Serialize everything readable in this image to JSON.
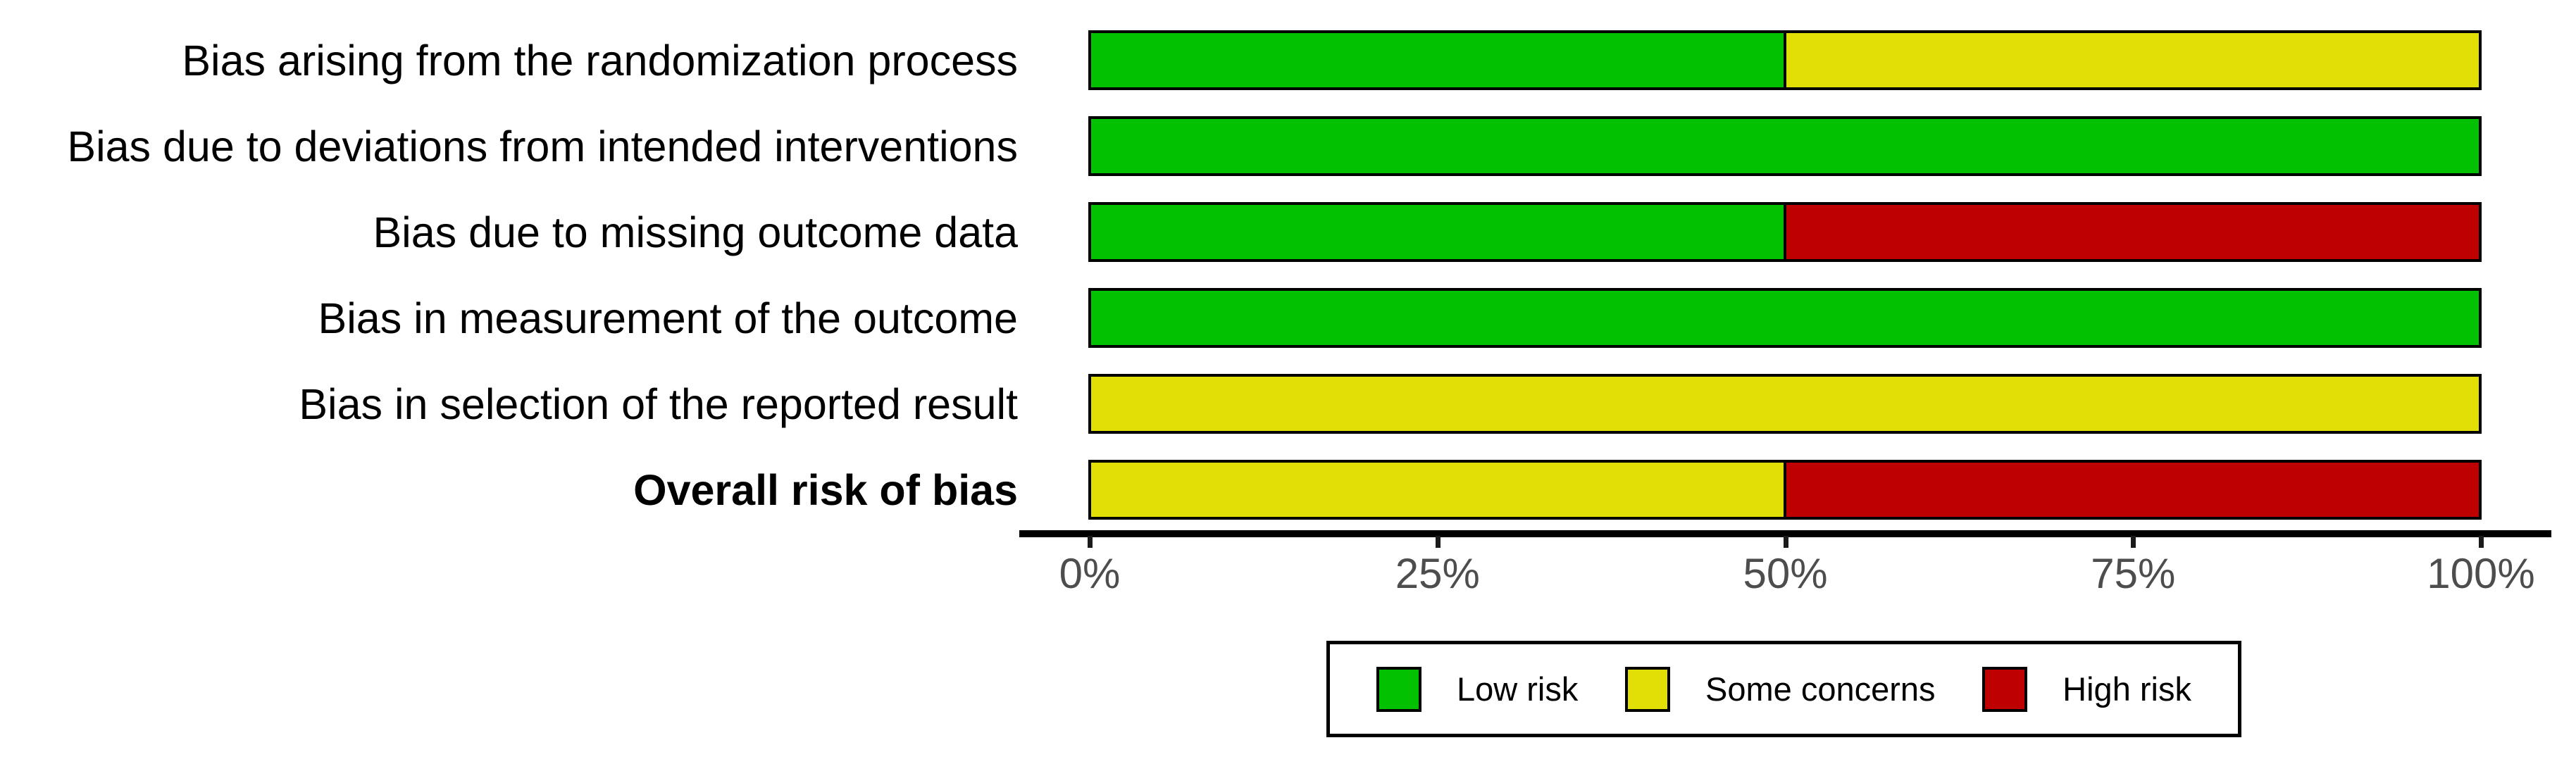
{
  "figure": {
    "background": "#FFFFFF"
  },
  "chart_data": {
    "type": "bar",
    "orientation": "horizontal",
    "stacked": true,
    "title": "",
    "xlabel": "",
    "ylabel": "",
    "xlim": [
      0,
      100
    ],
    "grid": false,
    "legend_position": "bottom",
    "x_tick_labels": [
      "0%",
      "25%",
      "50%",
      "75%",
      "100%"
    ],
    "x_tick_values": [
      0,
      25,
      50,
      75,
      100
    ],
    "categories": [
      "Bias arising from the randomization process",
      "Bias due to deviations from intended interventions",
      "Bias due to missing outcome data",
      "Bias in measurement of the outcome",
      "Bias in selection of the reported result",
      "Overall risk of bias"
    ],
    "bold_category_indices": [
      5
    ],
    "series": [
      {
        "name": "Low risk",
        "color": "#02C100",
        "values": [
          50,
          100,
          50,
          100,
          0,
          0
        ]
      },
      {
        "name": "Some concerns",
        "color": "#E2DF07",
        "values": [
          50,
          0,
          0,
          0,
          100,
          50
        ]
      },
      {
        "name": "High risk",
        "color": "#BF0000",
        "values": [
          0,
          0,
          50,
          0,
          0,
          50
        ]
      }
    ],
    "legend": [
      {
        "label": "Low risk",
        "color": "#02C100"
      },
      {
        "label": "Some concerns",
        "color": "#E2DF07"
      },
      {
        "label": "High risk",
        "color": "#BF0000"
      }
    ],
    "colors": {
      "bar_border": "#000000",
      "axis_line": "#000000",
      "axis_text": "#4D4D4D"
    }
  }
}
